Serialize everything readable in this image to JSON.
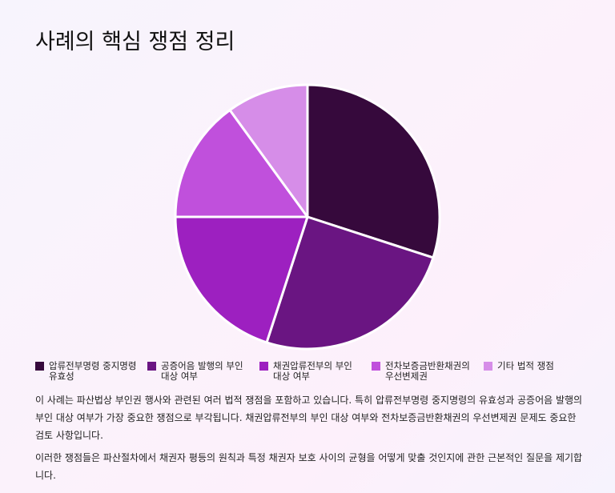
{
  "title": "사례의 핵심 쟁점 정리",
  "chart_data": {
    "type": "pie",
    "title": "",
    "legend_position": "bottom",
    "slices": [
      {
        "label": "압류전부명령 중지명령 유효성",
        "value": 30,
        "color": "#36093c"
      },
      {
        "label": "공증어음 발행의 부인 대상 여부",
        "value": 25,
        "color": "#6a1582"
      },
      {
        "label": "채권압류전부의 부인 대상 여부",
        "value": 20,
        "color": "#9d20c0"
      },
      {
        "label": "전차보증금반환채권의 우선변제권",
        "value": 15,
        "color": "#c050dc"
      },
      {
        "label": "기타 법적 쟁점",
        "value": 10,
        "color": "#d68de8"
      }
    ]
  },
  "paragraphs": [
    "이 사례는 파산법상 부인권 행사와 관련된 여러 법적 쟁점을 포함하고 있습니다. 특히 압류전부명령 중지명령의 유효성과 공증어음 발행의 부인 대상 여부가 가장 중요한 쟁점으로 부각됩니다. 채권압류전부의 부인 대상 여부와 전차보증금반환채권의 우선변제권 문제도 중요한 검토 사항입니다.",
    "이러한 쟁점들은 파산절차에서 채권자 평등의 원칙과 특정 채권자 보호 사이의 균형을 어떻게 맞출 것인지에 관한 근본적인 질문을 제기합니다."
  ]
}
